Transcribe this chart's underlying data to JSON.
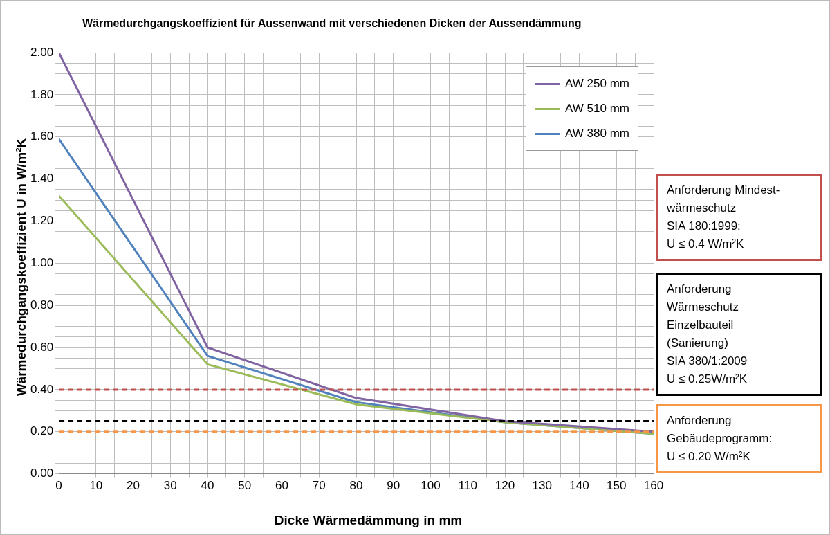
{
  "chart_data": {
    "type": "line",
    "title": "Wärmedurchgangskoeffizient für Aussenwand mit verschiedenen Dicken der Aussendämmung",
    "xlabel": "Dicke  Wärmedämmung in mm",
    "ylabel": "Wärmedurchgangskoeffizient U in W/m²K",
    "x": [
      0,
      40,
      80,
      120,
      160
    ],
    "series": [
      {
        "name": "AW 250 mm",
        "color": "#8064a2",
        "values": [
          2.0,
          0.6,
          0.36,
          0.25,
          0.2
        ]
      },
      {
        "name": "AW 510 mm",
        "color": "#9bbb59",
        "values": [
          1.32,
          0.52,
          0.33,
          0.245,
          0.19
        ]
      },
      {
        "name": "AW 380 mm",
        "color": "#4f81bd",
        "values": [
          1.59,
          0.56,
          0.34,
          0.245,
          0.19
        ]
      }
    ],
    "xlim": [
      0,
      160
    ],
    "xticks": [
      0,
      {
        "value": 5,
        "label": null
      },
      10,
      {
        "value": 15,
        "label": null
      },
      20,
      {
        "value": 25,
        "label": null
      },
      30,
      {
        "value": 35,
        "label": null
      },
      40,
      {
        "value": 45,
        "label": null
      },
      50,
      {
        "value": 55,
        "label": null
      },
      60,
      {
        "value": 65,
        "label": null
      },
      70,
      {
        "value": 75,
        "label": null
      },
      80,
      {
        "value": 85,
        "label": null
      },
      90,
      {
        "value": 95,
        "label": null
      },
      100,
      {
        "value": 105,
        "label": null
      },
      110,
      {
        "value": 115,
        "label": null
      },
      120,
      {
        "value": 125,
        "label": null
      },
      130,
      {
        "value": 135,
        "label": null
      },
      140,
      {
        "value": 145,
        "label": null
      },
      150,
      {
        "value": 155,
        "label": null
      },
      160
    ],
    "ylim": [
      0,
      2
    ],
    "yticks": [
      {
        "value": 0,
        "label": "0.00"
      },
      {
        "value": 0.05,
        "label": null
      },
      {
        "value": 0.1,
        "label": null
      },
      {
        "value": 0.15,
        "label": null
      },
      {
        "value": 0.2,
        "label": "0.20"
      },
      {
        "value": 0.25,
        "label": null
      },
      {
        "value": 0.3,
        "label": null
      },
      {
        "value": 0.35,
        "label": null
      },
      {
        "value": 0.4,
        "label": "0.40"
      },
      {
        "value": 0.45,
        "label": null
      },
      {
        "value": 0.5,
        "label": null
      },
      {
        "value": 0.55,
        "label": null
      },
      {
        "value": 0.6,
        "label": "0.60"
      },
      {
        "value": 0.65,
        "label": null
      },
      {
        "value": 0.7,
        "label": null
      },
      {
        "value": 0.75,
        "label": null
      },
      {
        "value": 0.8,
        "label": "0.80"
      },
      {
        "value": 0.85,
        "label": null
      },
      {
        "value": 0.9,
        "label": null
      },
      {
        "value": 0.95,
        "label": null
      },
      {
        "value": 1.0,
        "label": "1.00"
      },
      {
        "value": 1.05,
        "label": null
      },
      {
        "value": 1.1,
        "label": null
      },
      {
        "value": 1.15,
        "label": null
      },
      {
        "value": 1.2,
        "label": "1.20"
      },
      {
        "value": 1.25,
        "label": null
      },
      {
        "value": 1.3,
        "label": null
      },
      {
        "value": 1.35,
        "label": null
      },
      {
        "value": 1.4,
        "label": "1.40"
      },
      {
        "value": 1.45,
        "label": null
      },
      {
        "value": 1.5,
        "label": null
      },
      {
        "value": 1.55,
        "label": null
      },
      {
        "value": 1.6,
        "label": "1.60"
      },
      {
        "value": 1.65,
        "label": null
      },
      {
        "value": 1.7,
        "label": null
      },
      {
        "value": 1.75,
        "label": null
      },
      {
        "value": 1.8,
        "label": "1.80"
      },
      {
        "value": 1.85,
        "label": null
      },
      {
        "value": 1.9,
        "label": null
      },
      {
        "value": 1.95,
        "label": null
      },
      {
        "value": 2.0,
        "label": "2.00"
      }
    ],
    "ref_lines": [
      {
        "axis": "y",
        "value": 0.4,
        "color": "#c0504d",
        "line_style": "dashed"
      },
      {
        "axis": "y",
        "value": 0.25,
        "color": "#000000",
        "line_style": "dashed"
      },
      {
        "axis": "y",
        "value": 0.2,
        "color": "#f79646",
        "line_style": "dashed"
      }
    ],
    "annotations": [
      "Anforderung Mindest-\nwärmeschutz\nSIA 180:1999:\nU ≤ 0.4 W/m²K",
      "Anforderung\nWärmeschutz\nEinzelbauteil\n(Sanierung)\nSIA 380/1:2009\nU ≤ 0.25W/m²K",
      "Anforderung\nGebäudeprogramm:\nU ≤ 0.20 W/m²K"
    ],
    "grid": true,
    "legend": "top right",
    "marker": "none",
    "line_style": "solid"
  }
}
